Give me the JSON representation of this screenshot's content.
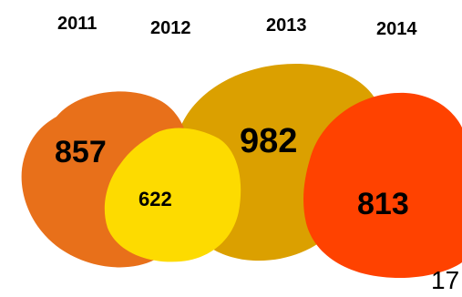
{
  "chart_data": {
    "type": "bubble",
    "categories": [
      "2011",
      "2012",
      "2013",
      "2014"
    ],
    "values": [
      857,
      622,
      982,
      813
    ],
    "colors": [
      "#E8701A",
      "#FDDB00",
      "#DBA000",
      "#FF4200"
    ],
    "title": "",
    "xlabel": "",
    "ylabel": ""
  },
  "page": {
    "number": "17"
  }
}
